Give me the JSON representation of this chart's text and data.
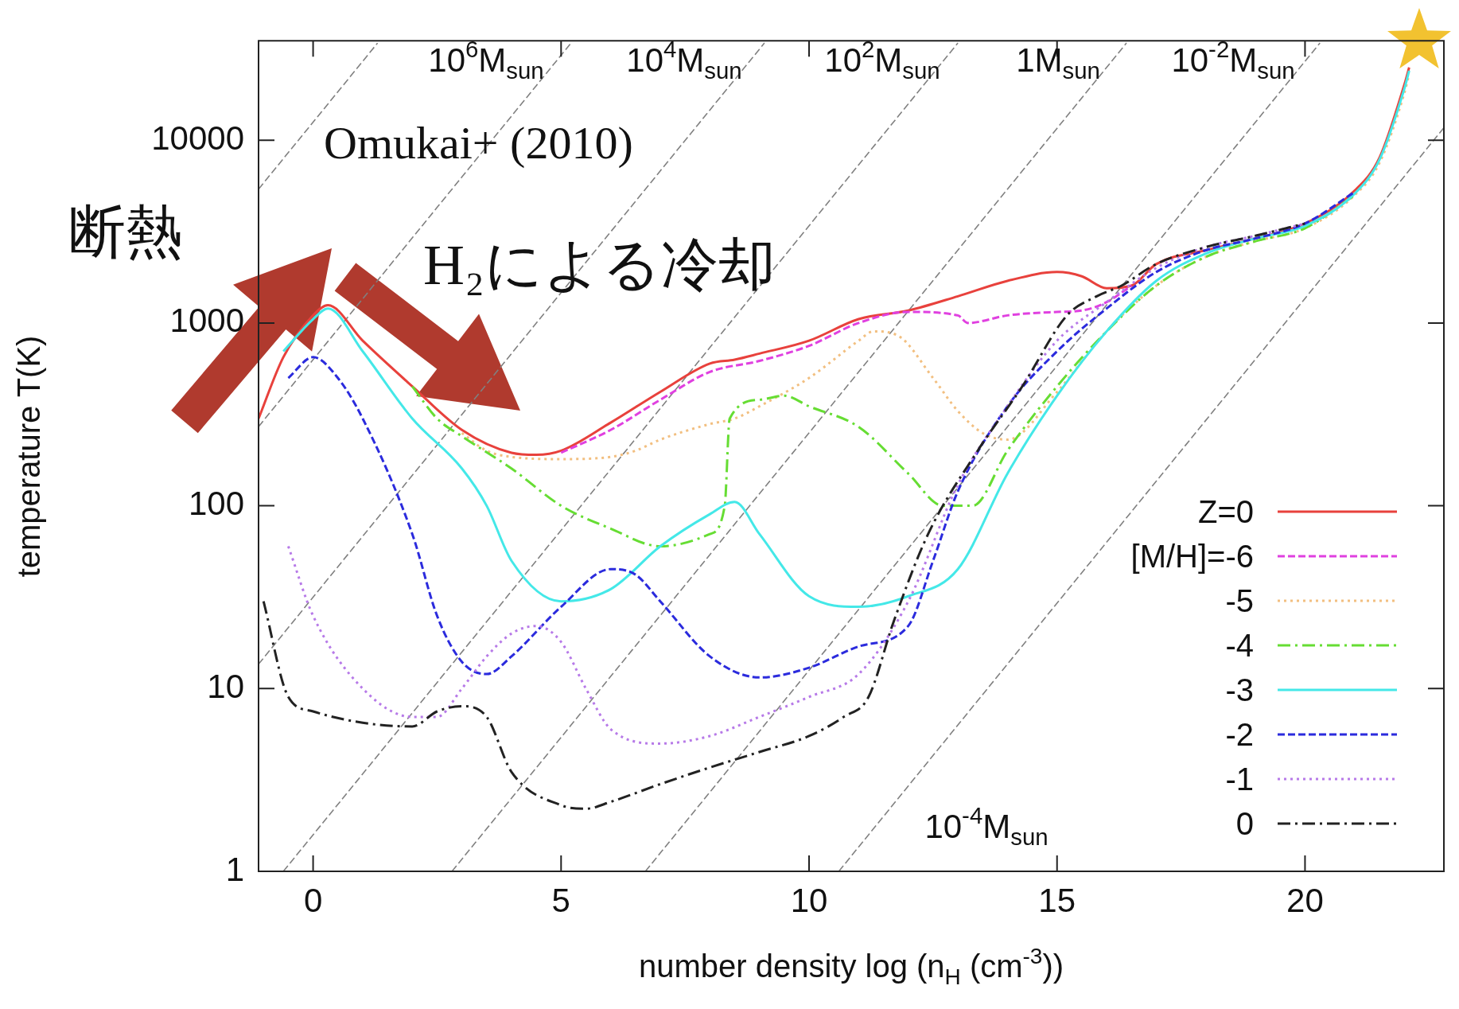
{
  "chart_data": {
    "type": "line",
    "xlabel": "number density log (n$_{H}$ (cm$^{-3}$))",
    "ylabel": "temperature T(K)",
    "xlim": [
      -1.1,
      22.8
    ],
    "ylim": [
      1,
      35000
    ],
    "xticks": [
      0,
      5,
      10,
      15,
      20
    ],
    "yticks": [
      1,
      10,
      100,
      1000,
      10000
    ],
    "log": "y",
    "legend": "bottom right",
    "series": [
      {
        "name": "Z=0",
        "color": "#e8413c",
        "line_style": "solid",
        "x": [
          -1.1,
          -0.6,
          0,
          0.3,
          1,
          2,
          3,
          4,
          4.5,
          5,
          6,
          7,
          8,
          8.5,
          9,
          10,
          11,
          12,
          13,
          14,
          15,
          15.5,
          16,
          16.5,
          17,
          18,
          19,
          20,
          21,
          21.5,
          22,
          22.1
        ],
        "values": [
          300,
          650,
          1100,
          1250,
          800,
          450,
          260,
          195,
          190,
          200,
          285,
          420,
          600,
          630,
          680,
          800,
          1050,
          1170,
          1400,
          1700,
          1900,
          1800,
          1550,
          1600,
          2100,
          2500,
          2900,
          3500,
          5300,
          8000,
          20000,
          25000
        ]
      },
      {
        "name": "[M/H]=-6",
        "color": "#e040e0",
        "line_style": "dashed",
        "x": [
          5,
          6,
          7,
          8,
          9,
          10,
          11,
          12,
          13,
          13.2,
          14,
          15,
          15.5,
          16,
          16.5
        ],
        "values": [
          195,
          260,
          380,
          540,
          620,
          750,
          1000,
          1150,
          1100,
          1000,
          1100,
          1150,
          1170,
          1300,
          1600
        ]
      },
      {
        "name": "-5",
        "color": "#f2bf80",
        "line_style": "dotted",
        "x": [
          3,
          3.5,
          4,
          5,
          6,
          6.5,
          7,
          8,
          8.5,
          9,
          10,
          11,
          11.3,
          11.8,
          12.5,
          13,
          13.5,
          14,
          15,
          16,
          17,
          18,
          19,
          20,
          21,
          21.5,
          22,
          22.1
        ],
        "values": [
          250,
          200,
          185,
          180,
          185,
          200,
          230,
          280,
          300,
          350,
          500,
          800,
          900,
          850,
          500,
          330,
          250,
          230,
          420,
          900,
          1600,
          2300,
          2800,
          3300,
          5000,
          7500,
          18000,
          23000
        ]
      },
      {
        "name": "-4",
        "color": "#66dd33",
        "line_style": "dashdot",
        "x": [
          2,
          2.5,
          3,
          4,
          5,
          6,
          7,
          8,
          8.3,
          8.4,
          9,
          9.5,
          10,
          11,
          12,
          12.7,
          13.3,
          14,
          15,
          16,
          17,
          18,
          19,
          20,
          21
        ],
        "values": [
          450,
          300,
          240,
          160,
          100,
          75,
          60,
          70,
          100,
          300,
          380,
          400,
          350,
          270,
          150,
          100,
          100,
          200,
          450,
          900,
          1600,
          2300,
          2800,
          3300,
          5000
        ]
      },
      {
        "name": "-3",
        "color": "#44e8e8",
        "line_style": "solid",
        "x": [
          -0.6,
          0,
          0.3,
          1,
          2,
          3,
          3.5,
          4,
          5,
          6,
          7,
          8,
          8.5,
          9,
          10,
          11,
          12,
          13,
          14,
          15,
          16,
          17,
          18,
          19,
          20,
          21,
          21.5,
          22,
          22.1
        ],
        "values": [
          700,
          1050,
          1200,
          700,
          300,
          160,
          100,
          50,
          30,
          35,
          60,
          90,
          105,
          70,
          32,
          28,
          32,
          45,
          150,
          400,
          900,
          1700,
          2400,
          2900,
          3400,
          5100,
          7800,
          19000,
          24000
        ]
      },
      {
        "name": "-2",
        "color": "#2b2bdd",
        "line_style": "dashed",
        "x": [
          -0.5,
          0,
          0.5,
          1,
          2,
          2.5,
          3,
          3.5,
          4,
          5,
          6,
          6.5,
          7,
          8,
          9,
          10,
          11,
          12,
          12.5,
          13,
          14,
          15,
          16,
          17,
          18,
          19,
          20,
          21
        ],
        "values": [
          500,
          650,
          500,
          300,
          70,
          25,
          14,
          12,
          15,
          28,
          45,
          42,
          30,
          15,
          11.5,
          13,
          17,
          22,
          50,
          120,
          350,
          700,
          1200,
          1900,
          2500,
          2900,
          3500,
          5200
        ]
      },
      {
        "name": "-1",
        "color": "#b77ae8",
        "line_style": "dotted",
        "x": [
          -0.5,
          0,
          1,
          2,
          2.5,
          3,
          3.5,
          4,
          4.5,
          5,
          5.5,
          6,
          7,
          8,
          9,
          10,
          11,
          12,
          13,
          14,
          15,
          16,
          17,
          18,
          19,
          20
        ],
        "values": [
          60,
          25,
          10,
          7,
          7,
          10,
          15,
          20,
          22,
          18,
          10,
          6,
          5,
          5.5,
          7,
          9,
          12,
          30,
          130,
          350,
          800,
          1300,
          2000,
          2600,
          3000,
          3500
        ]
      },
      {
        "name": "0",
        "color": "#222222",
        "line_style": "dashdot",
        "x": [
          -1,
          -0.5,
          0,
          1,
          2,
          2.5,
          3,
          3.5,
          4,
          5,
          5.5,
          6,
          7,
          8,
          9,
          10,
          10.7,
          11.2,
          11.7,
          12.4,
          13.4,
          14.3,
          15.2,
          15.8,
          16.3,
          17,
          18,
          19,
          20
        ],
        "values": [
          30,
          9,
          7.5,
          6.5,
          6.2,
          7.5,
          8,
          7,
          3.5,
          2.3,
          2.2,
          2.4,
          3,
          3.7,
          4.5,
          5.5,
          7,
          9,
          23,
          70,
          200,
          450,
          1100,
          1400,
          1600,
          2100,
          2600,
          3000,
          3500
        ]
      },
      {
        "color": "#808080",
        "line_style": "dashed",
        "x": [
          -1.1,
          1.3
        ],
        "values": [
          5400,
          34000
        ]
      },
      {
        "color": "#808080",
        "line_style": "dashed",
        "x": [
          -1.1,
          5.2
        ],
        "values": [
          271,
          34000
        ]
      },
      {
        "color": "#808080",
        "line_style": "dashed",
        "x": [
          -1.1,
          9.1
        ],
        "values": [
          13.6,
          34000
        ]
      },
      {
        "color": "#808080",
        "line_style": "dashed",
        "x": [
          -0.6,
          13
        ],
        "values": [
          1,
          34000
        ]
      },
      {
        "color": "#808080",
        "line_style": "dashed",
        "x": [
          2.8,
          16.4
        ],
        "values": [
          1,
          34000
        ]
      },
      {
        "color": "#808080",
        "line_style": "dashed",
        "x": [
          6.7,
          20.3
        ],
        "values": [
          1,
          34000
        ]
      },
      {
        "color": "#808080",
        "line_style": "dashed",
        "x": [
          10.6,
          22.8
        ],
        "values": [
          1,
          11700
        ]
      }
    ],
    "annotations": [
      "Omukai+ (2010)",
      "断熱",
      "H₂による冷却",
      "10$^{6}$M$_{sun}$",
      "10$^{4}$M$_{sun}$",
      "10$^{2}$M$_{sun}$",
      "1M$_{sun}$",
      "10$^{-2}$M$_{sun}$",
      "10$^{-4}$M$_{sun}$"
    ]
  }
}
